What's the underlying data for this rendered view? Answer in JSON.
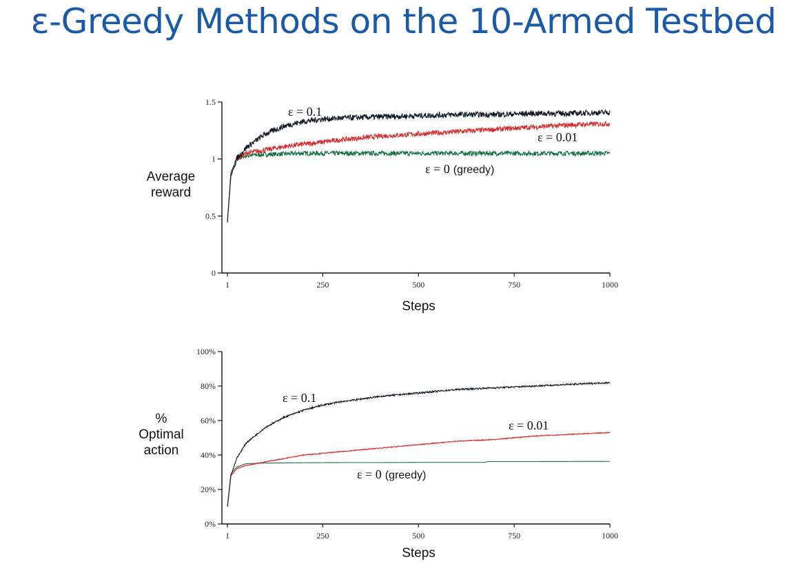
{
  "slide": {
    "title": "ε-Greedy Methods on the 10-Armed Testbed"
  },
  "chart_data": [
    {
      "type": "line",
      "xlabel": "Steps",
      "ylabel_lines": [
        "Average",
        "reward"
      ],
      "xlim": [
        1,
        1000
      ],
      "ylim": [
        0,
        1.5
      ],
      "x_ticks": [
        1,
        250,
        500,
        750,
        1000
      ],
      "x_tick_labels": [
        "1",
        "250",
        "500",
        "750",
        "1000"
      ],
      "y_ticks": [
        0,
        0.5,
        1,
        1.5
      ],
      "y_tick_labels": [
        "0",
        "0.5",
        "1",
        "1.5"
      ],
      "grid": false,
      "legend": "none",
      "series": [
        {
          "label_parts": [
            "ε = 0.1",
            ""
          ],
          "color": "#0f1a24",
          "x": [
            1,
            10,
            25,
            50,
            100,
            150,
            200,
            250,
            300,
            400,
            500,
            600,
            700,
            800,
            900,
            1000
          ],
          "y": [
            0.45,
            0.85,
            1.0,
            1.1,
            1.22,
            1.29,
            1.33,
            1.35,
            1.36,
            1.37,
            1.38,
            1.39,
            1.39,
            1.4,
            1.4,
            1.41
          ],
          "noise": 0.025
        },
        {
          "label_parts": [
            "ε = 0.01",
            ""
          ],
          "color": "#d62b2b",
          "x": [
            1,
            10,
            25,
            50,
            100,
            150,
            200,
            250,
            300,
            400,
            500,
            600,
            700,
            800,
            900,
            1000
          ],
          "y": [
            0.45,
            0.85,
            1.0,
            1.05,
            1.08,
            1.11,
            1.13,
            1.15,
            1.17,
            1.2,
            1.22,
            1.24,
            1.26,
            1.28,
            1.3,
            1.31
          ],
          "noise": 0.022
        },
        {
          "label_parts": [
            "ε = 0",
            "(greedy)"
          ],
          "color": "#10703f",
          "x": [
            1,
            10,
            25,
            50,
            100,
            200,
            400,
            600,
            800,
            1000
          ],
          "y": [
            0.45,
            0.88,
            1.0,
            1.03,
            1.04,
            1.05,
            1.05,
            1.05,
            1.05,
            1.05
          ],
          "noise": 0.02
        }
      ]
    },
    {
      "type": "line",
      "xlabel": "Steps",
      "ylabel_lines": [
        "%",
        "Optimal",
        "action"
      ],
      "xlim": [
        1,
        1000
      ],
      "ylim": [
        0,
        100
      ],
      "x_ticks": [
        1,
        250,
        500,
        750,
        1000
      ],
      "x_tick_labels": [
        "1",
        "250",
        "500",
        "750",
        "1000"
      ],
      "y_ticks": [
        0,
        20,
        40,
        60,
        80,
        100
      ],
      "y_tick_labels": [
        "0%",
        "20%",
        "40%",
        "60%",
        "80%",
        "100%"
      ],
      "grid": false,
      "legend": "none",
      "series": [
        {
          "label_parts": [
            "ε = 0.1",
            ""
          ],
          "color": "#0f1a24",
          "x": [
            1,
            10,
            25,
            50,
            100,
            150,
            200,
            250,
            300,
            400,
            500,
            600,
            700,
            800,
            900,
            1000
          ],
          "y": [
            10,
            28,
            38,
            47,
            56,
            62,
            66,
            69,
            71,
            74,
            76,
            78,
            79,
            80,
            81,
            82
          ],
          "noise": 0.45
        },
        {
          "label_parts": [
            "ε = 0.01",
            ""
          ],
          "color": "#d62b2b",
          "x": [
            1,
            10,
            25,
            50,
            100,
            150,
            200,
            250,
            300,
            400,
            500,
            600,
            700,
            800,
            900,
            1000
          ],
          "y": [
            10,
            28,
            32,
            34,
            36,
            38,
            40,
            41,
            42,
            44,
            46,
            48,
            49,
            51,
            52,
            53
          ],
          "noise": 0.25
        },
        {
          "label_parts": [
            "ε = 0",
            "(greedy)"
          ],
          "color": "#10703f",
          "x": [
            1,
            10,
            25,
            50,
            100,
            200,
            300,
            400,
            500,
            600,
            675,
            680,
            800,
            1000
          ],
          "y": [
            10,
            29,
            33,
            35,
            35.3,
            35.5,
            35.6,
            35.6,
            35.7,
            35.7,
            35.7,
            36.2,
            36.2,
            36.3
          ],
          "noise": 0
        }
      ]
    }
  ]
}
